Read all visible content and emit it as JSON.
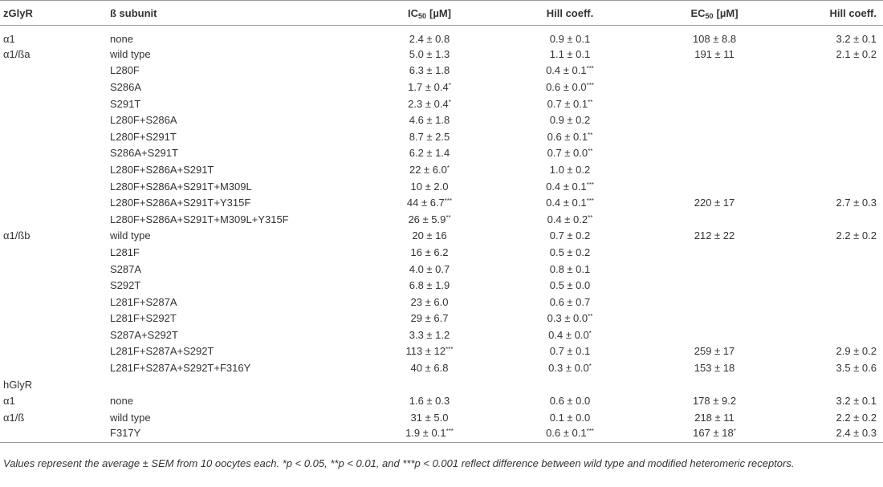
{
  "table": {
    "header": [
      "zGlyR",
      "ß subunit",
      {
        "main": "IC",
        "sub": "50",
        "unit": "[µM]"
      },
      "Hill coeff.",
      {
        "main": "EC",
        "sub": "50",
        "unit": "[µM]"
      },
      "Hill coeff."
    ],
    "rows": [
      [
        "α1",
        "none",
        "2.4 ± 0.8",
        "0.9 ± 0.1",
        "108 ± 8.8",
        "3.2 ± 0.1"
      ],
      [
        "α1/ßa",
        "wild type",
        "5.0 ± 1.3",
        "1.1 ± 0.1",
        "191 ± 11",
        "2.1 ± 0.2"
      ],
      [
        null,
        "L280F",
        "6.3 ± 1.8",
        {
          "text": "0.4 ± 0.1",
          "sig": "***"
        },
        null,
        null
      ],
      [
        null,
        "S286A",
        {
          "text": "1.7 ± 0.4",
          "sig": "*"
        },
        {
          "text": "0.6 ± 0.0",
          "sig": "***"
        },
        null,
        null
      ],
      [
        null,
        "S291T",
        {
          "text": "2.3 ± 0.4",
          "sig": "*"
        },
        {
          "text": "0.7 ± 0.1",
          "sig": "**"
        },
        null,
        null
      ],
      [
        null,
        "L280F+S286A",
        "4.6 ± 1.8",
        "0.9 ± 0.2",
        null,
        null
      ],
      [
        null,
        "L280F+S291T",
        "8.7 ± 2.5",
        {
          "text": "0.6 ± 0.1",
          "sig": "**"
        },
        null,
        null
      ],
      [
        null,
        "S286A+S291T",
        "6.2 ± 1.4",
        {
          "text": "0.7 ± 0.0",
          "sig": "**"
        },
        null,
        null
      ],
      [
        null,
        "L280F+S286A+S291T",
        {
          "text": "22 ± 6.0",
          "sig": "*"
        },
        "1.0 ± 0.2",
        null,
        null
      ],
      [
        null,
        "L280F+S286A+S291T+M309L",
        "10 ± 2.0",
        {
          "text": "0.4 ± 0.1",
          "sig": "***"
        },
        null,
        null
      ],
      [
        null,
        "L280F+S286A+S291T+Y315F",
        {
          "text": "44 ± 6.7",
          "sig": "***"
        },
        {
          "text": "0.4 ± 0.1",
          "sig": "***"
        },
        "220 ± 17",
        "2.7 ± 0.3"
      ],
      [
        null,
        "L280F+S286A+S291T+M309L+Y315F",
        {
          "text": "26 ± 5.9",
          "sig": "**"
        },
        {
          "text": "0.4 ± 0.2",
          "sig": "**"
        },
        null,
        null
      ],
      [
        "α1/ßb",
        "wild type",
        "20 ± 16",
        "0.7 ± 0.2",
        "212 ± 22",
        "2.2 ± 0.2"
      ],
      [
        null,
        "L281F",
        "16 ± 6.2",
        "0.5 ± 0.2",
        null,
        null
      ],
      [
        null,
        "S287A",
        "4.0 ± 0.7",
        "0.8 ± 0.1",
        null,
        null
      ],
      [
        null,
        "S292T",
        "6.8 ± 1.9",
        "0.5 ± 0.0",
        null,
        null
      ],
      [
        null,
        "L281F+S287A",
        "23 ± 6.0",
        "0.6 ± 0.7",
        null,
        null
      ],
      [
        null,
        "L281F+S292T",
        "29 ± 6.7",
        {
          "text": "0.3 ± 0.0",
          "sig": "**"
        },
        null,
        null
      ],
      [
        null,
        "S287A+S292T",
        "3.3 ± 1.2",
        {
          "text": "0.4 ± 0.0",
          "sig": "*"
        },
        null,
        null
      ],
      [
        null,
        "L281F+S287A+S292T",
        {
          "text": "113 ± 12",
          "sig": "***"
        },
        "0.7 ± 0.1",
        "259 ± 17",
        "2.9 ± 0.2"
      ],
      [
        null,
        "L281F+S287A+S292T+F316Y",
        "40 ± 6.8",
        {
          "text": "0.3 ± 0.0",
          "sig": "*"
        },
        "153 ± 18",
        "3.5 ± 0.6"
      ],
      [
        "hGlyR",
        null,
        null,
        null,
        null,
        null
      ],
      [
        "α1",
        "none",
        "1.6 ± 0.3",
        "0.6 ± 0.0",
        "178 ± 9.2",
        "3.2 ± 0.1"
      ],
      [
        "α1/ß",
        "wild type",
        "31 ± 5.0",
        "0.1 ± 0.0",
        "218 ± 11",
        "2.2 ± 0.2"
      ],
      [
        null,
        "F317Y",
        {
          "text": "1.9 ± 0.1",
          "sig": "***"
        },
        {
          "text": "0.6 ± 0.1",
          "sig": "***"
        },
        {
          "text": "167 ± 18",
          "sig": "*"
        },
        "2.4 ± 0.3"
      ]
    ]
  },
  "footnote": "Values represent the average ± SEM from 10 oocytes each. *p < 0.05, **p < 0.01, and ***p < 0.001 reflect difference between wild type and modified heteromeric receptors."
}
